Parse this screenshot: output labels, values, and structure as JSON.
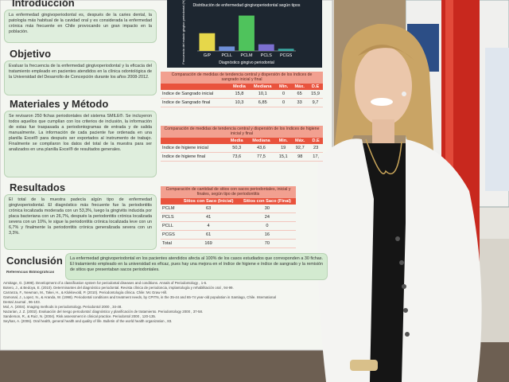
{
  "poster": {
    "intro": {
      "heading": "Introducción",
      "text": "La enfermedad gingivoperiodontal es, después de la caries dental, la patología más habitual de la cavidad oral y es considerada la enfermedad crónica más frecuente en Chile provocando un gran impacto en la población."
    },
    "chart_data": {
      "type": "bar",
      "title": "Distribución de enfermedad gingivoperiodontal según tipos",
      "y_label": "Frecuencia del estado gingivo periodontal (%)",
      "x_label": "Diagnóstico gingivo periodontal",
      "categories": [
        "G/P",
        "PCLL",
        "PCLM",
        "PCLS",
        "PCGS"
      ],
      "values": [
        26.7,
        6.7,
        53.3,
        10,
        3.3
      ],
      "colors": [
        "#e6d74a",
        "#6f8fd8",
        "#4fc35c",
        "#7b6fd0",
        "#3aa7a0"
      ],
      "ylim": [
        0,
        60
      ]
    },
    "objective": {
      "heading": "Objetivo",
      "text": "Evaluar la frecuencia de la enfermedad gingivoperiodontal y la eficacia del tratamiento empleado en pacientes atendidos en la clínica odontológica de la Universidad del Desarrollo de Concepción durante los años 2008-2012."
    },
    "methods": {
      "heading": "Materiales y Método",
      "text": "Se revisaron 250 fichas periodontales del sistema SMILE®. Se incluyeron todos aquellos que cumplían con los criterios de inclusión, la información de estas fue traspasada a periodontogramas de entrada y de salida manualmente. La información de cada paciente fue ordenada en una planilla Excel® para después ser exportados al instrumento de trabajo. Finalmente se compilaron los datos del total de la muestra para ser analizados en una planilla Excel® de resultados generales."
    },
    "results": {
      "heading": "Resultados",
      "text": "El total de la muestra padecía algún tipo de enfermedad gingivoperiodontal. El diagnóstico más frecuente fue la periodontitis crónica localizada moderada con un 53,3%, luego la gingivitis inducida por placa bacteriana con un 26,7%, después la periodontitis crónica localizada severa con un 10%, le sigue la periodontitis crónica localizada leve con un 6,7% y finalmente la periodontitis crónica generalizada severa con un 3,3%."
    },
    "conclusion": {
      "heading": "Conclusión",
      "text": "La enfermedad gingivoperiodontal en los pacientes atendidos afecta al 100% de los casos estudiados que corresponden a 30 fichas. El tratamiento empleado en la universidad es eficaz, pues hay una mejora en el índice de higiene e índice de sangrado y la remisión de sitios que presentaban sacos periodontales."
    },
    "tables": [
      {
        "title": "Comparación de medidas de tendencia central y dispersión de los índices de sangrado inicial y final",
        "header": [
          "",
          "Media",
          "Mediana",
          "Mín.",
          "Máx.",
          "D.E"
        ],
        "rows": [
          [
            "Indice de Sangrado inicial",
            "15,8",
            "10,1",
            "0",
            "65",
            "15,9"
          ],
          [
            "Indice de Sangrado final",
            "10,3",
            "6,85",
            "0",
            "33",
            "9,7"
          ]
        ]
      },
      {
        "title": "Comparación de medidas de tendencia central y dispersión de los índices de higiene inicial y final",
        "header": [
          "",
          "Media",
          "Mediana",
          "Min.",
          "Máx.",
          "D.E"
        ],
        "rows": [
          [
            "Indice de higiene inicial",
            "50,3",
            "43,6",
            "19",
            "92,7",
            "23"
          ],
          [
            "Indice de higiene final",
            "73,6",
            "77,5",
            "15,1",
            "98",
            "17,"
          ]
        ]
      },
      {
        "title": "Comparación de cantidad de sitios con sacos periodontales, inicial y finales, según tipo de periodontitis",
        "header": [
          "",
          "Sitios con Saco (Inicial)",
          "Sitios con Saco (Final)"
        ],
        "rows": [
          [
            "PCLM",
            "63",
            "30"
          ],
          [
            "PCLS",
            "41",
            "24"
          ],
          [
            "PCLL",
            "4",
            "0"
          ],
          [
            "PCGS",
            "61",
            "16"
          ],
          [
            "Total",
            "169",
            "70"
          ]
        ]
      }
    ],
    "references_heading": "Referencias Bibliográficas",
    "references": [
      "Armitage, G. (1999). Development of a classification system for periodontal diseases and conditions. Annals of Periodontology , 1-6.",
      "Botero, J., & Bedoya, E. (2010). Determinantes del diagnóstico periodontal. Revista clínica de periodoncia, implantología y rehabilitación oral , 94-99.",
      "Carranza, F., Newman, M., Takei, H., & Klokkevold, P. (2010). Periodontología clínica. Chile: Mc Graw Hill.",
      "Gamonal, J., Lopez, N., & Aranda, W. (1998). Periodontal conditions and treatment needs, by CPITN, in the 35-44 and 65-74 year-old population in Santiago, Chile. International",
      "Dental Journal , 96-103.",
      "Mol, A. (2004). Imaging methods in periodontology. Periodontol 2000 , 34-48.",
      "Nazarian, J. Z. (2002). Evaluación del riesgo periodontal: diagnóstico y planificación de tratamiento. Periodontology 2000 , 37-58.",
      "Sanderson, R., & Ruiz, N. (2004). Risk assessment in clinical practice. Periodontol 2000 , 120-135.",
      "Seyhan, A. (2006). Oral health, general health and quality of life. Bulletin of the world health organization , 83."
    ]
  }
}
